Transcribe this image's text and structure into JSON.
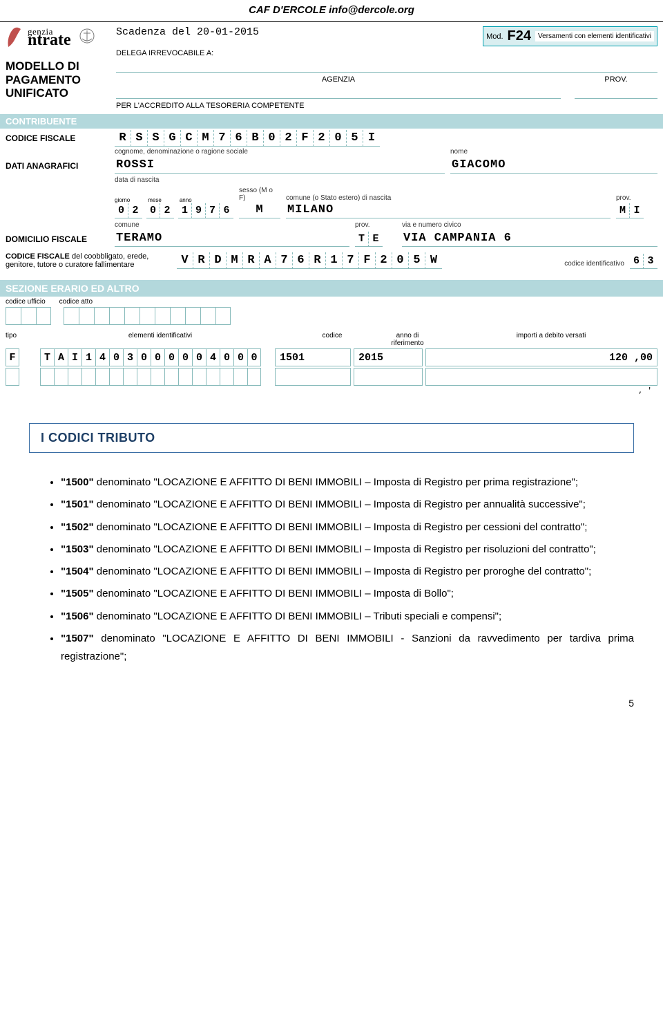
{
  "header": "CAF D'ERCOLE  info@dercole.org",
  "form": {
    "scadenza": "Scadenza del 20-01-2015",
    "mod": {
      "label": "Mod.",
      "code": "F24",
      "desc": "Versamenti con elementi identificativi"
    },
    "logo": {
      "top": "genzia",
      "bot": "ntrate"
    },
    "model_title_1": "MODELLO DI PAGAMENTO",
    "model_title_2": "UNIFICATO",
    "delega_label": "DELEGA IRREVOCABILE A:",
    "agenzia_label": "AGENZIA",
    "prov_label": "PROV.",
    "tesoreria_label": "PER L'ACCREDITO ALLA TESORERIA COMPETENTE",
    "band_contribuente": "CONTRIBUENTE",
    "codice_fiscale_label": "CODICE FISCALE",
    "codice_fiscale": [
      "R",
      "S",
      "S",
      "G",
      "C",
      "M",
      "7",
      "6",
      "B",
      "0",
      "2",
      "F",
      "2",
      "0",
      "5",
      "I"
    ],
    "dati_anagrafici_label": "DATI ANAGRAFICI",
    "cognome_label": "cognome, denominazione o ragione sociale",
    "nome_label": "nome",
    "cognome": "ROSSI",
    "nome": "GIACOMO",
    "nascita_label": "data di nascita",
    "giorno_label": "giorno",
    "mese_label": "mese",
    "anno_label": "anno",
    "sesso_label": "sesso (M o F)",
    "comune_nascita_label": "comune (o Stato estero) di nascita",
    "prov_nascita_label": "prov.",
    "nascita_gg": [
      "0",
      "2"
    ],
    "nascita_mm": [
      "0",
      "2"
    ],
    "nascita_yyyy": [
      "1",
      "9",
      "7",
      "6"
    ],
    "sesso": "M",
    "comune_nascita": "MILANO",
    "prov_nascita": [
      "M",
      "I"
    ],
    "domicilio_label": "DOMICILIO FISCALE",
    "comune_label": "comune",
    "prov_dom_label": "prov.",
    "via_label": "via e numero civico",
    "comune_dom": "TERAMO",
    "prov_dom": [
      "T",
      "E"
    ],
    "via_dom": "VIA CAMPANIA 6",
    "coobbligato_label_1": "CODICE FISCALE",
    "coobbligato_label_2": "del coobbligato, erede,",
    "coobbligato_label_3": "genitore, tutore o curatore fallimentare",
    "cf_coobbligato": [
      "V",
      "R",
      "D",
      "M",
      "R",
      "A",
      "7",
      "6",
      "R",
      "1",
      "7",
      "F",
      "2",
      "0",
      "5",
      "W"
    ],
    "codice_ident_label": "codice identificativo",
    "codice_ident": [
      "6",
      "3"
    ],
    "sezione_band": "SEZIONE ERARIO ED ALTRO",
    "codice_ufficio_label": "codice ufficio",
    "codice_atto_label": "codice atto",
    "col_tipo": "tipo",
    "col_elem": "elementi identificativi",
    "col_codice": "codice",
    "col_anno": "anno di",
    "col_rif": "riferimento",
    "col_importi": "importi a debito versati",
    "row1": {
      "tipo": [
        "F"
      ],
      "elem": [
        "T",
        "A",
        "I",
        "1",
        "4",
        "0",
        "3",
        "0",
        "0",
        "0",
        "0",
        "0",
        "4",
        "0",
        "0",
        "0"
      ],
      "codice": "1501",
      "anno": "2015",
      "importo": "120 ,00"
    },
    "trailing": ", '"
  },
  "article": {
    "title": "I CODICI TRIBUTO",
    "items": [
      {
        "code": "1500",
        "text": "denominato \"LOCAZIONE E AFFITTO DI BENI IMMOBILI – Imposta di Registro per prima registrazione\";"
      },
      {
        "code": "1501",
        "text": "denominato \"LOCAZIONE E AFFITTO DI BENI IMMOBILI – Imposta di Registro per annualità successive\";"
      },
      {
        "code": "1502",
        "text": "denominato \"LOCAZIONE E AFFITTO DI BENI IMMOBILI – Imposta di Registro per cessioni del contratto\";"
      },
      {
        "code": "1503",
        "text": "denominato \"LOCAZIONE E AFFITTO DI BENI IMMOBILI – Imposta di Registro per risoluzioni del contratto\";"
      },
      {
        "code": "1504",
        "text": "denominato \"LOCAZIONE E AFFITTO DI BENI IMMOBILI – Imposta di Registro per proroghe del contratto\";"
      },
      {
        "code": "1505",
        "text": "denominato \"LOCAZIONE E AFFITTO DI BENI IMMOBILI – Imposta di Bollo\";"
      },
      {
        "code": "1506",
        "text": "denominato \"LOCAZIONE E AFFITTO DI BENI IMMOBILI – Tributi speciali e compensi\";"
      },
      {
        "code": "1507",
        "text": "denominato \"LOCAZIONE E AFFITTO DI BENI IMMOBILI - Sanzioni da ravvedimento per tardiva prima registrazione\";"
      }
    ]
  },
  "page_number": "5"
}
